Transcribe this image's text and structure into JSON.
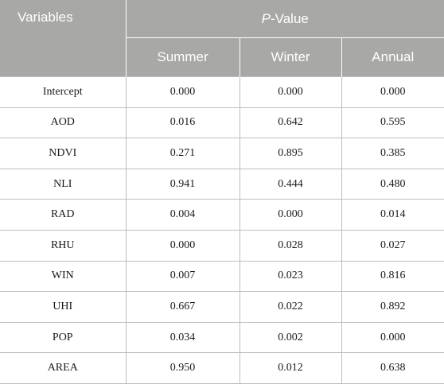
{
  "header": {
    "variables_label": "Variables",
    "pvalue_prefix": "P",
    "pvalue_suffix": "-Value",
    "columns": [
      "Summer",
      "Winter",
      "Annual"
    ]
  },
  "rows": [
    {
      "variable": "Intercept",
      "summer": "0.000",
      "winter": "0.000",
      "annual": "0.000"
    },
    {
      "variable": "AOD",
      "summer": "0.016",
      "winter": "0.642",
      "annual": "0.595"
    },
    {
      "variable": "NDVI",
      "summer": "0.271",
      "winter": "0.895",
      "annual": "0.385"
    },
    {
      "variable": "NLI",
      "summer": "0.941",
      "winter": "0.444",
      "annual": "0.480"
    },
    {
      "variable": "RAD",
      "summer": "0.004",
      "winter": "0.000",
      "annual": "0.014"
    },
    {
      "variable": "RHU",
      "summer": "0.000",
      "winter": "0.028",
      "annual": "0.027"
    },
    {
      "variable": "WIN",
      "summer": "0.007",
      "winter": "0.023",
      "annual": "0.816"
    },
    {
      "variable": "UHI",
      "summer": "0.667",
      "winter": "0.022",
      "annual": "0.892"
    },
    {
      "variable": "POP",
      "summer": "0.034",
      "winter": "0.002",
      "annual": "0.000"
    },
    {
      "variable": "AREA",
      "summer": "0.950",
      "winter": "0.012",
      "annual": "0.638"
    }
  ],
  "colors": {
    "header_bg": "#a8a8a6",
    "header_text": "#ffffff",
    "grid": "#bdbdbd"
  }
}
